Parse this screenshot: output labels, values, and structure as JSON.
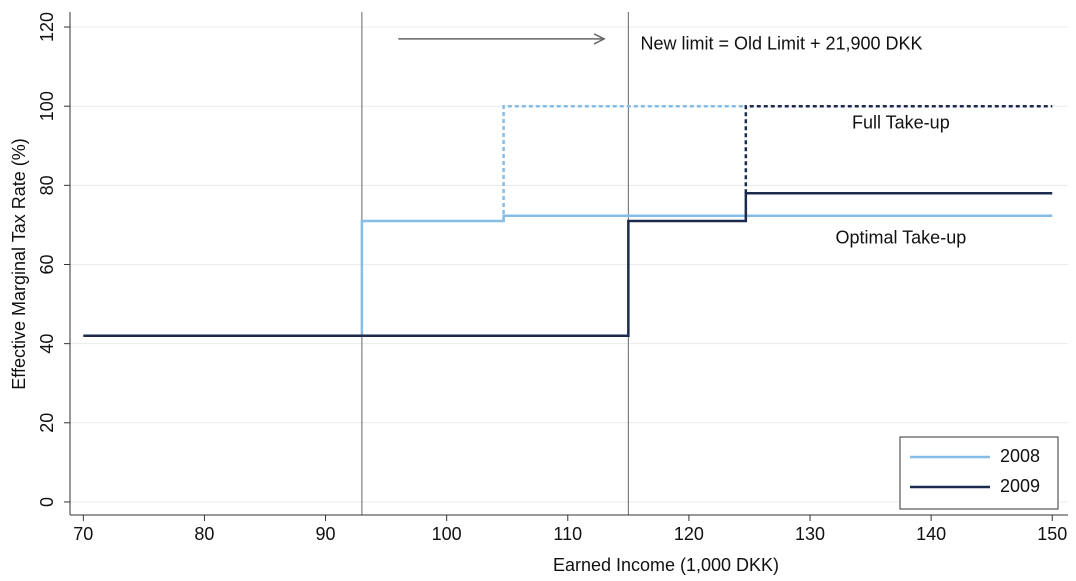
{
  "chart_data": {
    "type": "line",
    "xlabel": "Earned Income (1,000 DKK)",
    "ylabel": "Effective Marginal Tax Rate (%)",
    "xlim": [
      68.9,
      151.3
    ],
    "ylim": [
      -3.3,
      123.8
    ],
    "xticks": [
      70,
      80,
      90,
      100,
      110,
      120,
      130,
      140,
      150
    ],
    "yticks": [
      0,
      20,
      40,
      60,
      80,
      100,
      120
    ],
    "grid": true,
    "legend": "bottom-right",
    "series": [
      {
        "name": "2008",
        "color": "#85bde8",
        "x": [
          70,
          93,
          93,
          104.7,
          104.7,
          150
        ],
        "values": [
          42,
          42,
          71,
          71,
          72.3,
          72.3
        ]
      },
      {
        "name": "2009",
        "color": "#1c2a4d",
        "x": [
          70,
          115,
          115,
          124.7,
          124.7,
          150
        ],
        "values": [
          42,
          42,
          71,
          71,
          78,
          78
        ]
      }
    ],
    "dashed_series": [
      {
        "color": "#85bde8",
        "x": [
          104.7,
          104.7,
          124.7
        ],
        "values": [
          71,
          100,
          100
        ]
      },
      {
        "color": "#1c2a4d",
        "x": [
          124.7,
          124.7,
          150
        ],
        "values": [
          78,
          100,
          100
        ]
      }
    ],
    "vlines": [
      93,
      115
    ],
    "arrow": {
      "x": [
        96,
        113
      ],
      "y": 117
    },
    "annotations": [
      {
        "text": "New limit = Old Limit + 21,900 DKK",
        "x": 116,
        "y": 115.5,
        "anchor": "start"
      },
      {
        "text": "Full Take-up",
        "x": 137.5,
        "y": 95.5,
        "anchor": "middle"
      },
      {
        "text": "Optimal Take-up",
        "x": 137.5,
        "y": 66.5,
        "anchor": "middle"
      }
    ]
  }
}
